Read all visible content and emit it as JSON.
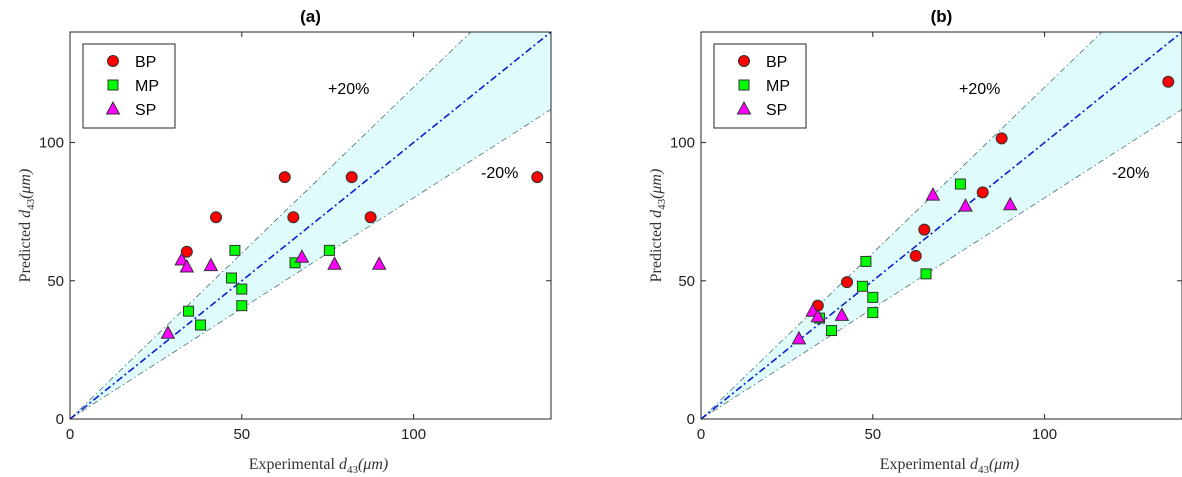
{
  "chart_data": [
    {
      "type": "scatter",
      "title": "(a)",
      "xlabel_text": "Experimental",
      "ylabel_text": "Predicted",
      "label_symbol": "d",
      "label_sub": "43",
      "label_unit": "(μm)",
      "xlim": [
        0,
        140
      ],
      "ylim": [
        0,
        140
      ],
      "xticks": [
        0,
        50,
        100
      ],
      "yticks": [
        0,
        50,
        100
      ],
      "grid": false,
      "legend_position": "top-left",
      "annotations": {
        "upper": "+20%",
        "lower": "-20%"
      },
      "band_color": "#dffbfb",
      "parity_color": "#0a1fd0",
      "series": [
        {
          "name": "BP",
          "marker": "circle",
          "color": "#ff0000",
          "x": [
            34,
            42.5,
            62.5,
            65,
            82,
            87.5,
            136
          ],
          "y": [
            60.5,
            73,
            87.5,
            73,
            87.5,
            73,
            87.5
          ]
        },
        {
          "name": "MP",
          "marker": "square",
          "color": "#00ff00",
          "x": [
            34.5,
            38,
            47,
            48,
            50,
            50,
            65.5,
            75.5
          ],
          "y": [
            39,
            34,
            51,
            61,
            47,
            41,
            56.5,
            61
          ]
        },
        {
          "name": "SP",
          "marker": "triangle",
          "color": "#ff00ff",
          "x": [
            28.5,
            32.5,
            34,
            41,
            67.5,
            77,
            90
          ],
          "y": [
            31,
            57.5,
            55,
            55.5,
            58.5,
            56,
            56
          ]
        }
      ]
    },
    {
      "type": "scatter",
      "title": "(b)",
      "xlabel_text": "Experimental",
      "ylabel_text": "Predicted",
      "label_symbol": "d",
      "label_sub": "43",
      "label_unit": "(μm)",
      "xlim": [
        0,
        140
      ],
      "ylim": [
        0,
        140
      ],
      "xticks": [
        0,
        50,
        100
      ],
      "yticks": [
        0,
        50,
        100
      ],
      "grid": false,
      "legend_position": "top-left",
      "annotations": {
        "upper": "+20%",
        "lower": "-20%"
      },
      "band_color": "#dffbfb",
      "parity_color": "#0a1fd0",
      "series": [
        {
          "name": "BP",
          "marker": "circle",
          "color": "#ff0000",
          "x": [
            34,
            42.5,
            62.5,
            65,
            82,
            87.5,
            136
          ],
          "y": [
            41,
            49.5,
            59,
            68.5,
            82,
            101.5,
            122
          ]
        },
        {
          "name": "MP",
          "marker": "square",
          "color": "#00ff00",
          "x": [
            34.5,
            38,
            47,
            48,
            50,
            50,
            65.5,
            75.5
          ],
          "y": [
            36.5,
            32,
            48,
            57,
            44,
            38.5,
            52.5,
            85
          ]
        },
        {
          "name": "SP",
          "marker": "triangle",
          "color": "#ff00ff",
          "x": [
            28.5,
            32.5,
            34,
            41,
            67.5,
            77,
            90
          ],
          "y": [
            29,
            39,
            37,
            37.5,
            81,
            77,
            77.5
          ]
        }
      ]
    }
  ]
}
